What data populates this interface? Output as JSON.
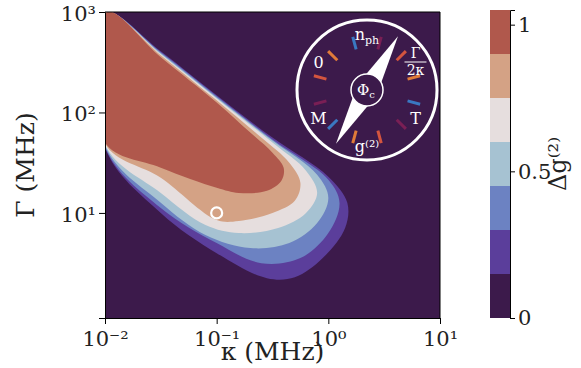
{
  "chart_data": {
    "type": "contour",
    "x_label": "κ (MHz)",
    "y_label": "Γ (MHz)",
    "log": true,
    "xlim": [
      0.01,
      10
    ],
    "ylim": [
      0.9,
      1000
    ],
    "xticks": [
      {
        "value": 0.01,
        "label": "10⁻²"
      },
      {
        "value": 0.1,
        "label": "10⁻¹"
      },
      {
        "value": 1,
        "label": "10⁰"
      },
      {
        "value": 10,
        "label": "10¹"
      }
    ],
    "yticks": [
      {
        "value": 10,
        "label": "10¹"
      },
      {
        "value": 100,
        "label": "10²"
      },
      {
        "value": 1000,
        "label": "10³"
      }
    ],
    "colorbar": {
      "label": "Δg⁽²⁾",
      "range": [
        0,
        1.05
      ],
      "ticks": [
        0,
        0.5,
        1
      ],
      "levels": [
        0,
        0.15,
        0.3,
        0.45,
        0.6,
        0.75,
        0.9,
        1.05
      ],
      "colors": [
        "#3c1a4b",
        "#5b3e9b",
        "#6c82c2",
        "#a6c2d2",
        "#e6dede",
        "#d4a285",
        "#b0584c"
      ]
    },
    "contours": [
      {
        "level": 0.15,
        "points": [
          [
            0.01,
            1000
          ],
          [
            0.0316,
            407
          ],
          [
            0.1,
            148
          ],
          [
            0.316,
            56.2
          ],
          [
            1,
            22.9
          ],
          [
            1.479,
            12.6
          ],
          [
            1.413,
            7.08
          ],
          [
            0.891,
            3.55
          ],
          [
            0.501,
            2.29
          ],
          [
            0.282,
            2.24
          ],
          [
            0.1,
            3.98
          ],
          [
            0.0316,
            10
          ],
          [
            0.01,
            44.7
          ]
        ]
      },
      {
        "level": 0.3,
        "points": [
          [
            0.01,
            1000
          ],
          [
            0.0316,
            398
          ],
          [
            0.1,
            145
          ],
          [
            0.316,
            53.7
          ],
          [
            1,
            21.4
          ],
          [
            1.259,
            12.6
          ],
          [
            1,
            6.31
          ],
          [
            0.562,
            3.55
          ],
          [
            0.251,
            3.16
          ],
          [
            0.1,
            5.01
          ],
          [
            0.0316,
            11.2
          ],
          [
            0.01,
            45.7
          ]
        ]
      },
      {
        "level": 0.45,
        "points": [
          [
            0.01,
            1000
          ],
          [
            0.0316,
            389
          ],
          [
            0.1,
            141
          ],
          [
            0.316,
            52.5
          ],
          [
            0.794,
            24
          ],
          [
            1,
            14.1
          ],
          [
            0.794,
            7.94
          ],
          [
            0.447,
            5.01
          ],
          [
            0.2,
            4.47
          ],
          [
            0.0794,
            6.03
          ],
          [
            0.0316,
            12.6
          ],
          [
            0.01,
            46.8
          ]
        ]
      },
      {
        "level": 0.6,
        "points": [
          [
            0.01,
            1000
          ],
          [
            0.0316,
            380
          ],
          [
            0.1,
            138
          ],
          [
            0.316,
            50.1
          ],
          [
            0.631,
            26.3
          ],
          [
            0.794,
            15.8
          ],
          [
            0.631,
            10
          ],
          [
            0.355,
            7.08
          ],
          [
            0.158,
            6.31
          ],
          [
            0.0794,
            7.59
          ],
          [
            0.0316,
            15.8
          ],
          [
            0.01,
            47.9
          ]
        ]
      },
      {
        "level": 0.75,
        "points": [
          [
            0.01023,
            1000
          ],
          [
            0.0316,
            372
          ],
          [
            0.1,
            132
          ],
          [
            0.251,
            56.2
          ],
          [
            0.447,
            31.6
          ],
          [
            0.562,
            20
          ],
          [
            0.501,
            13.2
          ],
          [
            0.316,
            10
          ],
          [
            0.158,
            8.32
          ],
          [
            0.1,
            8.51
          ],
          [
            0.0316,
            22.4
          ],
          [
            0.01,
            49
          ]
        ]
      },
      {
        "level": 0.9,
        "points": [
          [
            0.01047,
            1000
          ],
          [
            0.0316,
            355
          ],
          [
            0.1,
            126
          ],
          [
            0.2,
            63.1
          ],
          [
            0.316,
            39.8
          ],
          [
            0.398,
            28.2
          ],
          [
            0.38,
            20.9
          ],
          [
            0.282,
            16.6
          ],
          [
            0.158,
            15.8
          ],
          [
            0.1,
            17.8
          ],
          [
            0.0316,
            28.2
          ],
          [
            0.01,
            50.1
          ]
        ]
      }
    ],
    "highlight_point": {
      "x": 0.1,
      "y": 10
    },
    "inset": {
      "labels": [
        {
          "text": "n",
          "sub": "ph"
        },
        {
          "num": "Γ",
          "den": "2κ"
        },
        {
          "text": "T"
        },
        {
          "text": "g⁽²⁾"
        },
        {
          "text": "M"
        },
        {
          "text": "0"
        }
      ],
      "center": {
        "text": "Φ",
        "sub": "c"
      }
    }
  }
}
